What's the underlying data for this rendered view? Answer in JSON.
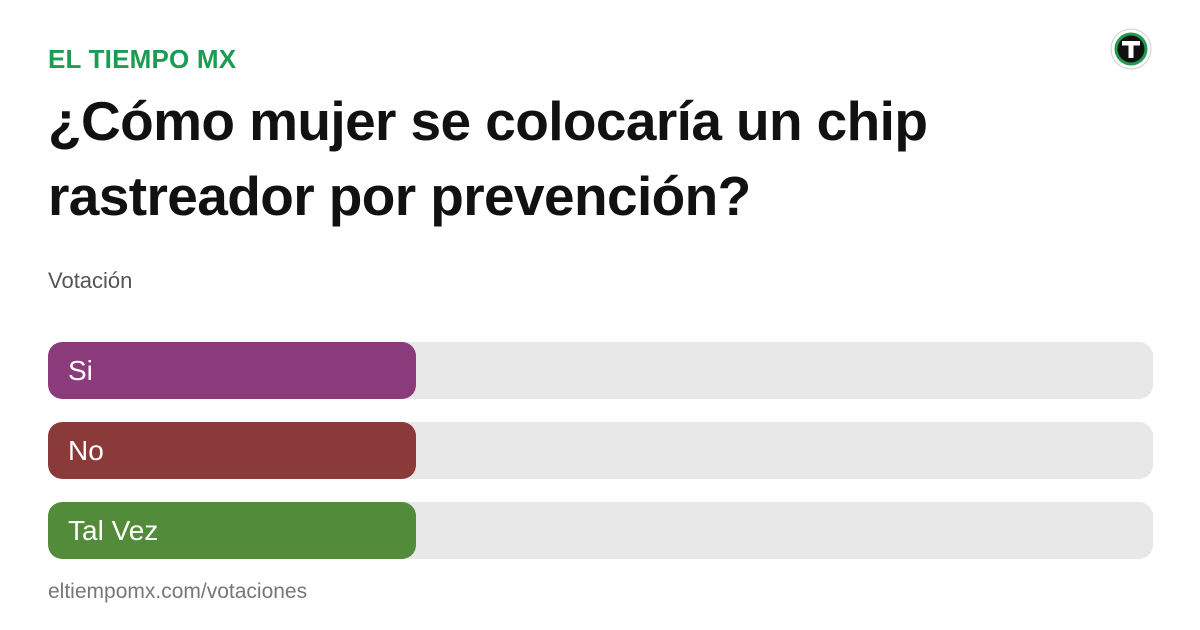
{
  "header": {
    "brand": "EL TIEMPO MX",
    "brand_color": "#1a9c52",
    "logo_icon": "el-tiempo-logo-icon"
  },
  "poll": {
    "question": "¿Cómo mujer se colocaría un chip rastreador por prevención?",
    "subtitle": "Votación",
    "options": [
      {
        "label": "Si",
        "color": "#8b3a7c",
        "fill_fraction": 0.333
      },
      {
        "label": "No",
        "color": "#8b3a3a",
        "fill_fraction": 0.333
      },
      {
        "label": "Tal Vez",
        "color": "#528b3a",
        "fill_fraction": 0.333
      }
    ]
  },
  "footer": {
    "url": "eltiempomx.com/votaciones"
  }
}
